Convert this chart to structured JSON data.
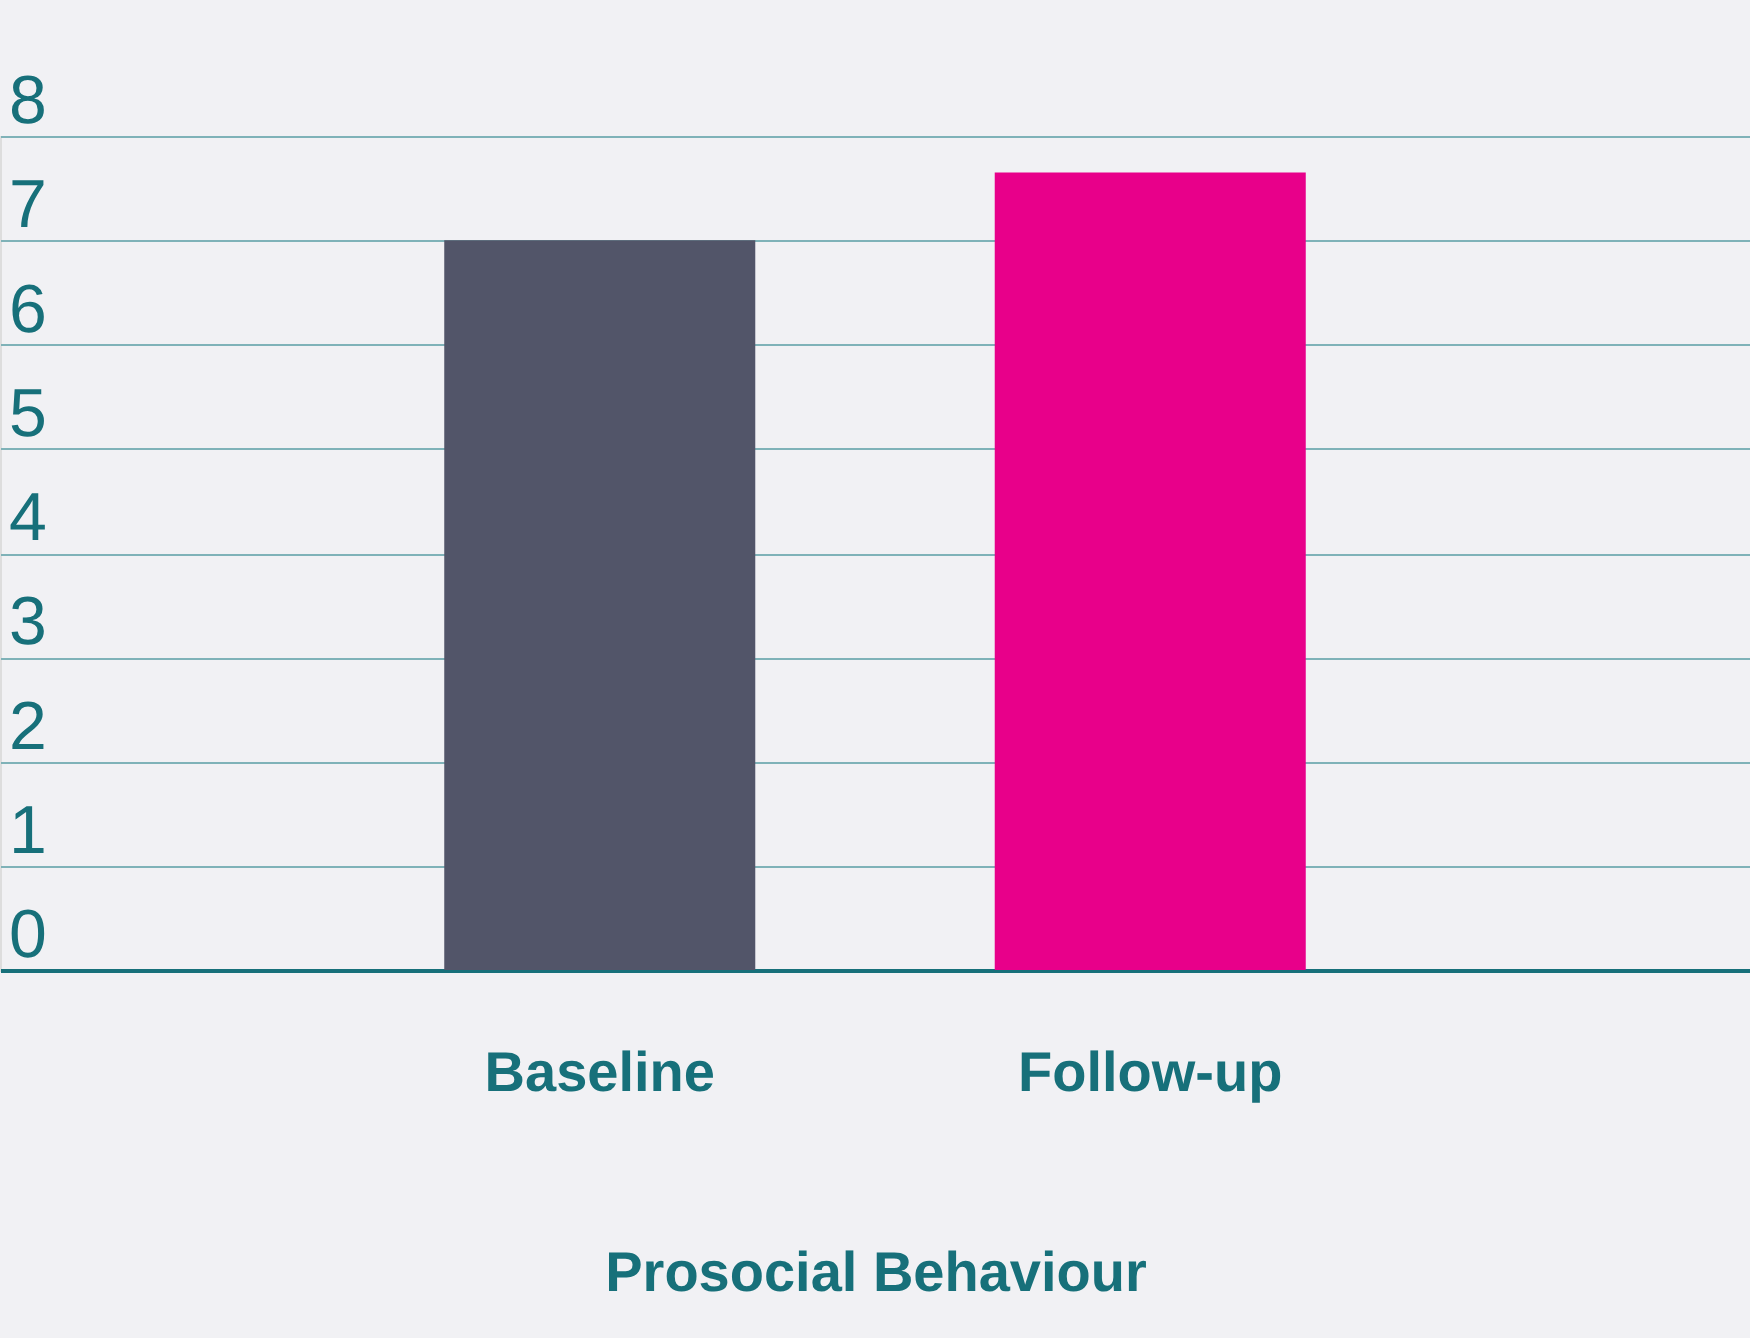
{
  "chart_data": {
    "type": "bar",
    "xlabel": "Prosocial Behaviour",
    "categories": [
      "Baseline",
      "Follow-up"
    ],
    "values": [
      7.0,
      7.65
    ],
    "colors": [
      "#525569",
      "#e8008a"
    ],
    "ylim": [
      0,
      8
    ],
    "yticks": [
      0,
      1,
      2,
      3,
      4,
      5,
      6,
      7,
      8
    ],
    "grid": "y"
  }
}
